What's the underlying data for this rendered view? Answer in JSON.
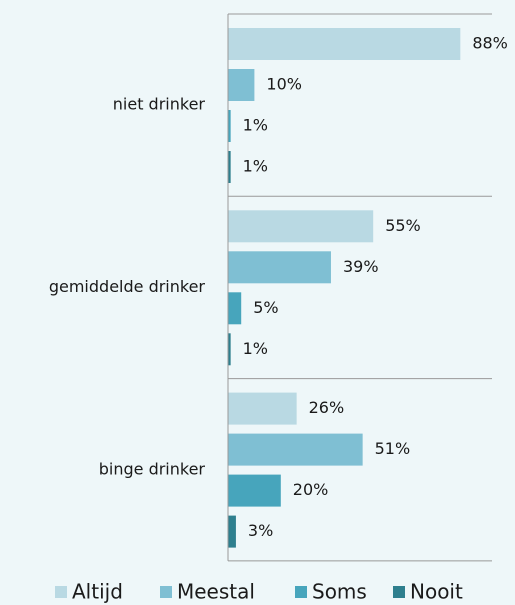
{
  "chart_data": {
    "type": "hbar",
    "categories": [
      "niet drinker",
      "gemiddelde drinker",
      "binge drinker"
    ],
    "series": [
      {
        "name": "Altijd",
        "color": "#b9d9e3",
        "values": [
          88,
          55,
          26
        ],
        "value_labels": [
          "88%",
          "55%",
          "26%"
        ]
      },
      {
        "name": "Meestal",
        "color": "#7fbfd3",
        "values": [
          10,
          39,
          51
        ],
        "value_labels": [
          "10%",
          "39%",
          "51%"
        ]
      },
      {
        "name": "Soms",
        "color": "#47a5bc",
        "values": [
          1,
          5,
          20
        ],
        "value_labels": [
          "1%",
          "5%",
          "20%"
        ]
      },
      {
        "name": "Nooit",
        "color": "#2e7f8e",
        "values": [
          1,
          1,
          3
        ],
        "value_labels": [
          "1%",
          "1%",
          "3%"
        ]
      }
    ],
    "xlim": [
      0,
      100
    ],
    "legend": "bottom"
  }
}
